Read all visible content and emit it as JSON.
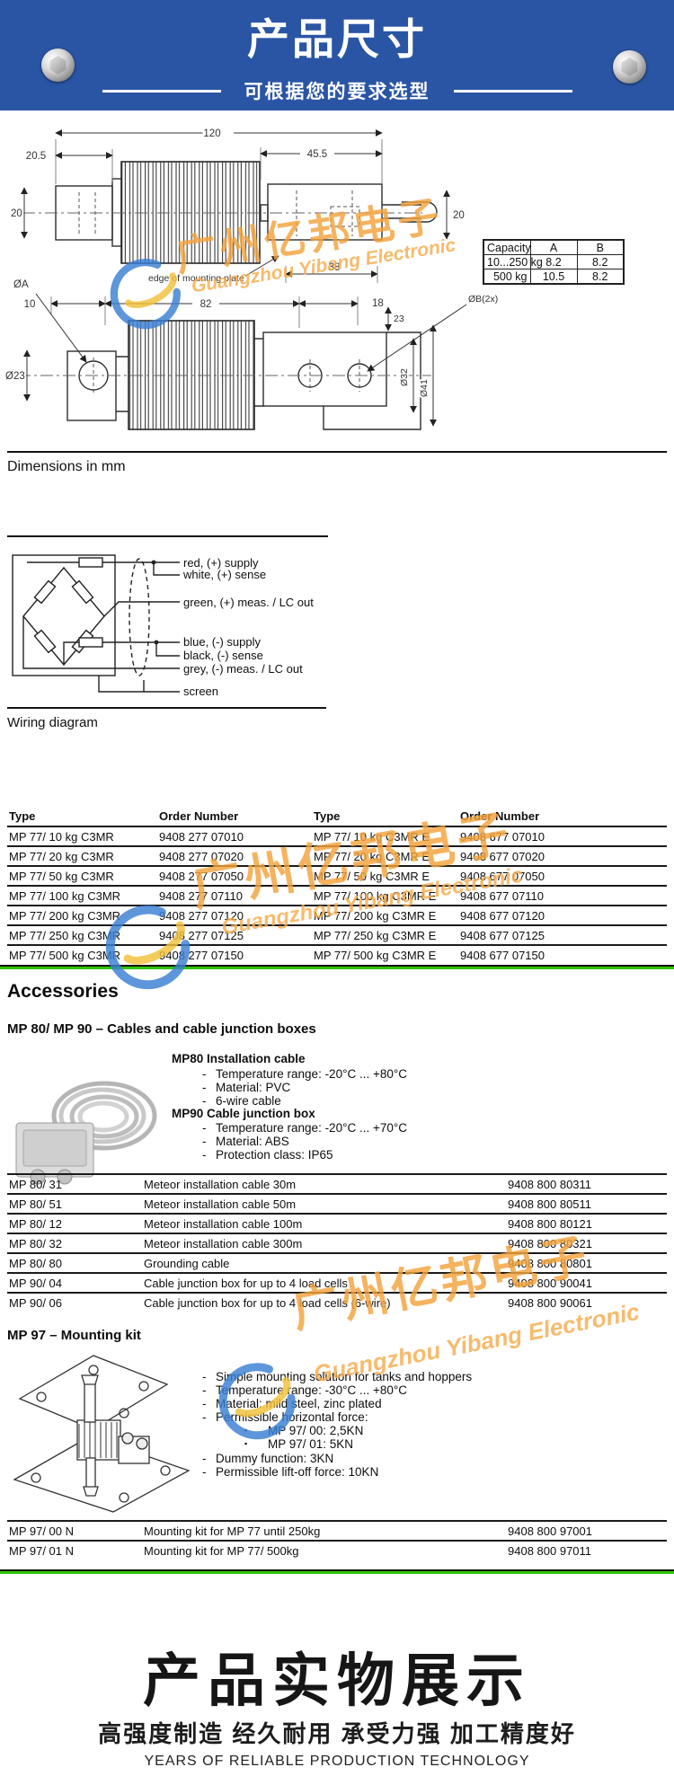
{
  "header": {
    "title": "产品尺寸",
    "subtitle": "可根据您的要求选型"
  },
  "drawing": {
    "caption": "Dimensions in mm",
    "dims": {
      "total": "120",
      "left_offset": "20.5",
      "right_offset": "45.5",
      "height_left": "20",
      "height_right": "20",
      "edge_note": "edge of mounting plate",
      "d38": "38",
      "d10": "10",
      "d82": "82",
      "d18": "18",
      "dia_b": "ØB(2x)",
      "dia_a": "ØA",
      "dia_23": "Ø23",
      "d23": "23",
      "dia_32": "Ø32",
      "dia_41": "Ø41"
    },
    "capacity_table": {
      "headers": [
        "Capacity",
        "A",
        "B"
      ],
      "rows": [
        [
          "10...250 kg",
          "8.2",
          "8.2"
        ],
        [
          "500 kg",
          "10.5",
          "8.2"
        ]
      ]
    }
  },
  "wiring": {
    "caption": "Wiring diagram",
    "labels": [
      "red, (+) supply",
      "white, (+) sense",
      "green, (+) meas. / LC out",
      "blue, (-) supply",
      "black, (-) sense",
      "grey, (-) meas. / LC out",
      "screen"
    ]
  },
  "order_table": {
    "headers": [
      "Type",
      "Order Number",
      "Type",
      "Order Number"
    ],
    "rows": [
      [
        "MP 77/ 10 kg C3MR",
        "9408 277 07010",
        "MP 77/ 10 kg C3MR E",
        "9408 677 07010"
      ],
      [
        "MP 77/ 20 kg C3MR",
        "9408 277 07020",
        "MP 77/ 20 kg C3MR E",
        "9408 677 07020"
      ],
      [
        "MP 77/ 50 kg C3MR",
        "9408 277 07050",
        "MP 77/ 50 kg C3MR E",
        "9408 677 07050"
      ],
      [
        "MP 77/ 100 kg C3MR",
        "9408 277 07110",
        "MP 77/ 100 kg C3MR E",
        "9408 677 07110"
      ],
      [
        "MP 77/ 200 kg C3MR",
        "9408 277 07120",
        "MP 77/ 200 kg C3MR E",
        "9408 677 07120"
      ],
      [
        "MP 77/ 250 kg C3MR",
        "9408 277 07125",
        "MP 77/ 250 kg C3MR E",
        "9408 677 07125"
      ],
      [
        "MP 77/ 500 kg C3MR",
        "9408 277 07150",
        "MP 77/ 500 kg C3MR E",
        "9408 677 07150"
      ]
    ]
  },
  "accessories": {
    "title": "Accessories",
    "cables": {
      "heading": "MP 80/ MP 90 – Cables and cable junction boxes",
      "mp80_label": "MP80 Installation cable",
      "mp80_items": [
        "Temperature range:  -20°C ... +80°C",
        "Material: PVC",
        "6-wire cable"
      ],
      "mp90_label": "MP90 Cable junction box",
      "mp90_items": [
        "Temperature range:  -20°C ... +70°C",
        "Material: ABS",
        "Protection class: IP65"
      ],
      "table_rows": [
        [
          "MP 80/ 31",
          "Meteor installation cable 30m",
          "9408 800 80311"
        ],
        [
          "MP 80/ 51",
          "Meteor installation cable 50m",
          "9408 800 80511"
        ],
        [
          "MP 80/ 12",
          "Meteor installation cable 100m",
          "9408 800 80121"
        ],
        [
          "MP 80/ 32",
          "Meteor installation cable 300m",
          "9408 800 80321"
        ],
        [
          "MP 80/ 80",
          "Grounding cable",
          "9408 800 80801"
        ],
        [
          "MP 90/ 04",
          "Cable junction box for up to 4 load cells",
          "9408 800 90041"
        ],
        [
          "MP 90/ 06",
          "Cable junction box for up to 4 load cells (6-wire)",
          "9408 800 90061"
        ]
      ]
    },
    "mounting": {
      "heading": "MP 97 – Mounting kit",
      "items": [
        "Simple mounting solution for tanks and hoppers",
        "Temperature range:  -30°C ... +80°C",
        "Material: mild steel, zinc plated",
        "Permissible horizontal force:"
      ],
      "sub_items": [
        "MP 97/ 00: 2,5KN",
        "MP 97/ 01: 5KN"
      ],
      "items2": [
        "Dummy function: 3KN",
        "Permissible lift-off force: 10KN"
      ],
      "table_rows": [
        [
          "MP 97/ 00 N",
          "Mounting kit for MP 77 until 250kg",
          "9408 800 97001"
        ],
        [
          "MP 97/ 01 N",
          "Mounting kit for MP 77/ 500kg",
          "9408 800 97011"
        ]
      ]
    }
  },
  "watermark": {
    "cn": "广州亿邦电子",
    "en": "Guangzhou Yibang Electronic"
  },
  "footer": {
    "title": "产品实物展示",
    "subtitle": "高强度制造 经久耐用 承受力强 加工精度好",
    "tagline": "YEARS OF RELIABLE PRODUCTION TECHNOLOGY"
  },
  "colors": {
    "header_bg": "#2a55a4",
    "accent_green": "#2fc400",
    "watermark_orange": "#f3a33c"
  }
}
